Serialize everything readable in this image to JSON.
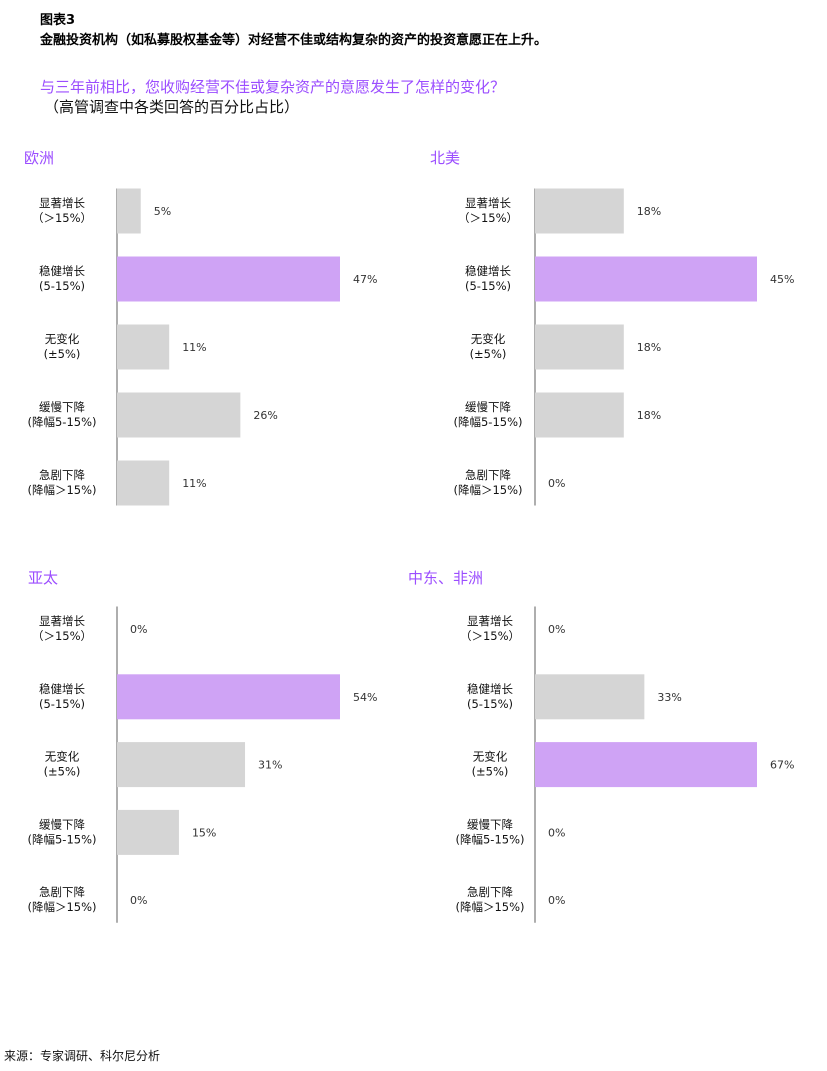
{
  "figure": {
    "number": "图表3",
    "title": "金融投资机构（如私募股权基金等）对经营不佳或结构复杂的资产的投资意愿正在上升。",
    "question": "与三年前相比，您收购经营不佳或复杂资产的意愿发生了怎样的变化？",
    "question_note": "（高管调查中各类回答的百分比占比）",
    "source": "来源：专家调研、科尔尼分析"
  },
  "colors": {
    "highlight_bar": "#cfa3f5",
    "default_bar": "#d5d5d5",
    "axis_line": "#999999",
    "title_purple": "#9b4dff"
  },
  "chart_data": [
    {
      "type": "bar",
      "orientation": "horizontal",
      "title": "欧洲",
      "categories": [
        [
          "显著增长",
          "（＞15%）"
        ],
        [
          "稳健增长",
          "(5-15%)"
        ],
        [
          "无变化",
          "(±5%)"
        ],
        [
          "缓慢下降",
          "(降幅5-15%)"
        ],
        [
          "急剧下降",
          "(降幅＞15%)"
        ]
      ],
      "values": [
        5,
        47,
        11,
        26,
        11
      ],
      "value_labels": [
        "5%",
        "47%",
        "11%",
        "26%",
        "11%"
      ],
      "highlight_index": 1,
      "xlim": [
        0,
        47
      ]
    },
    {
      "type": "bar",
      "orientation": "horizontal",
      "title": "北美",
      "categories": [
        [
          "显著增长",
          "（＞15%）"
        ],
        [
          "稳健增长",
          "(5-15%)"
        ],
        [
          "无变化",
          "(±5%)"
        ],
        [
          "缓慢下降",
          "(降幅5-15%)"
        ],
        [
          "急剧下降",
          "(降幅＞15%)"
        ]
      ],
      "values": [
        18,
        45,
        18,
        18,
        0
      ],
      "value_labels": [
        "18%",
        "45%",
        "18%",
        "18%",
        "0%"
      ],
      "highlight_index": 1,
      "xlim": [
        0,
        45
      ]
    },
    {
      "type": "bar",
      "orientation": "horizontal",
      "title": "亚太",
      "categories": [
        [
          "显著增长",
          "（＞15%）"
        ],
        [
          "稳健增长",
          "(5-15%)"
        ],
        [
          "无变化",
          "(±5%)"
        ],
        [
          "缓慢下降",
          "(降幅5-15%)"
        ],
        [
          "急剧下降",
          "(降幅＞15%)"
        ]
      ],
      "values": [
        0,
        54,
        31,
        15,
        0
      ],
      "value_labels": [
        "0%",
        "54%",
        "31%",
        "15%",
        "0%"
      ],
      "highlight_index": 1,
      "xlim": [
        0,
        54
      ]
    },
    {
      "type": "bar",
      "orientation": "horizontal",
      "title": "中东、非洲",
      "categories": [
        [
          "显著增长",
          "（＞15%）"
        ],
        [
          "稳健增长",
          "(5-15%)"
        ],
        [
          "无变化",
          "(±5%)"
        ],
        [
          "缓慢下降",
          "(降幅5-15%)"
        ],
        [
          "急剧下降",
          "(降幅＞15%)"
        ]
      ],
      "values": [
        0,
        33,
        67,
        0,
        0
      ],
      "value_labels": [
        "0%",
        "33%",
        "67%",
        "0%",
        "0%"
      ],
      "highlight_index": 2,
      "xlim": [
        0,
        67
      ]
    }
  ]
}
